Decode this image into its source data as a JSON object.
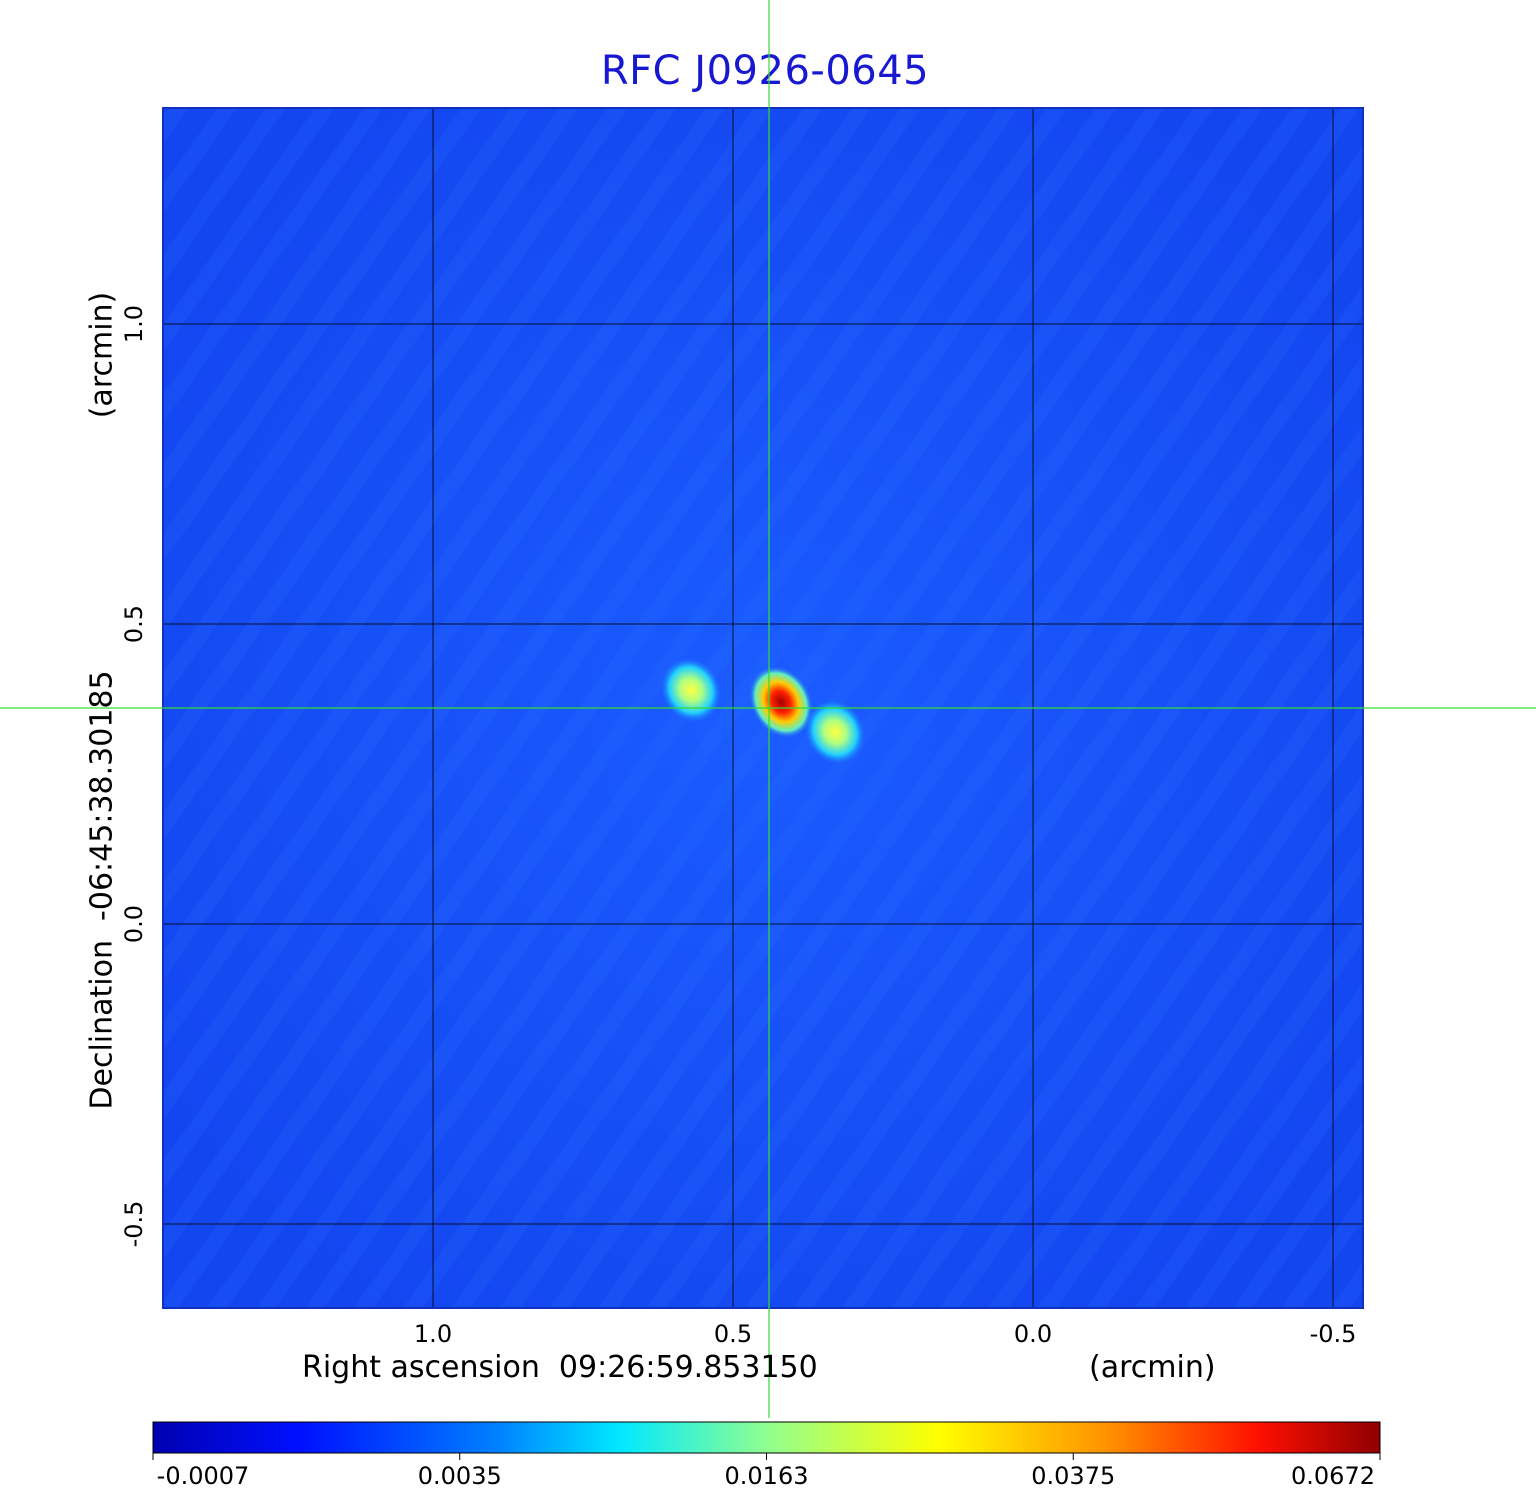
{
  "title": "RFC J0926-0645",
  "chart_data": {
    "type": "heatmap",
    "title": "RFC J0926-0645",
    "xlabel": "Right ascension  09:26:59.853150",
    "xunit": "(arcmin)",
    "ylabel": "Declination  -06:45:38.30185",
    "yunit": "(arcmin)",
    "x_range": [
      1.45,
      -0.55
    ],
    "y_range": [
      -0.64,
      1.36
    ],
    "x_ticks": [
      1.0,
      0.5,
      0.0,
      -0.5
    ],
    "x_tick_labels": [
      "1.0",
      "0.5",
      "0.0",
      "-0.5"
    ],
    "y_ticks": [
      1.0,
      0.5,
      0.0,
      -0.5
    ],
    "y_tick_labels": [
      "1.0",
      "0.5",
      "0.0",
      "-0.5"
    ],
    "grid": true,
    "crosshair": {
      "x": 0.44,
      "y": 0.36
    },
    "colormap": "jet",
    "colorbar_labels": [
      "-0.0007",
      "0.0035",
      "0.0163",
      "0.0375",
      "0.0672"
    ],
    "components": [
      {
        "x": 0.42,
        "y": 0.37,
        "peak": 0.0672
      },
      {
        "x": 0.57,
        "y": 0.39,
        "peak": 0.024
      },
      {
        "x": 0.33,
        "y": 0.32,
        "peak": 0.019
      }
    ]
  }
}
